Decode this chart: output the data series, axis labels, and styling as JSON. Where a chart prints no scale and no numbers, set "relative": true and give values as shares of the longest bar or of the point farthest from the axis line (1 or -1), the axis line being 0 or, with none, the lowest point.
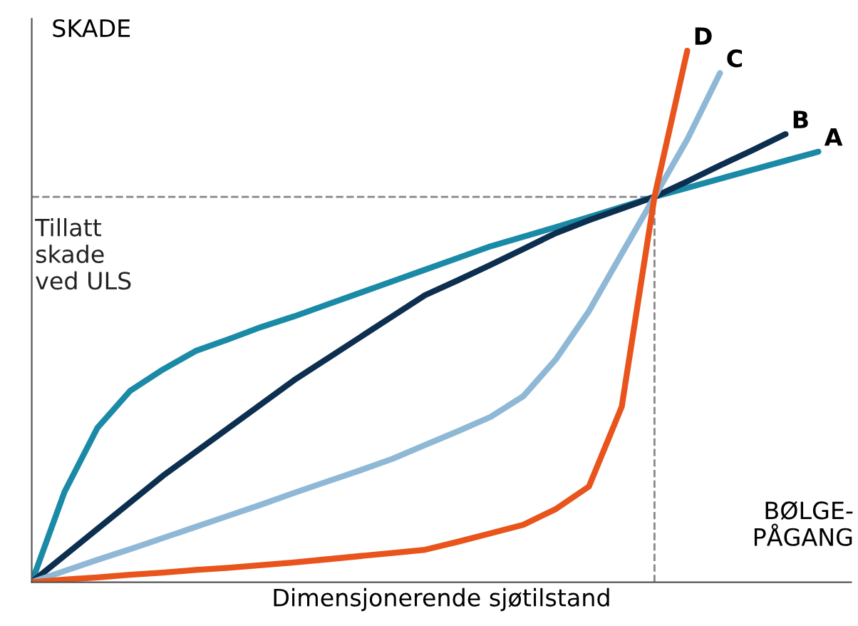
{
  "chart_data": {
    "type": "line",
    "relative": true,
    "ylabel": "SKADE",
    "xlabel": "Dimensjonerende sjøtilstand",
    "annotations": [
      {
        "text": "BØLGE-\nPÅGANG"
      }
    ],
    "categories": [
      null,
      null,
      null,
      null,
      null,
      null,
      null,
      null,
      null,
      null,
      null,
      null,
      null,
      null,
      null,
      null,
      null,
      null,
      null,
      null,
      null,
      null,
      null,
      null,
      null,
      null
    ],
    "ref_lines": [
      {
        "axis": "y",
        "value": 0.725,
        "label": "Tillatt\nskade\nved ULS",
        "color": "#888888",
        "line_style": "dashed"
      }
    ],
    "series": [
      {
        "name": "A",
        "color": "#1a8aa6",
        "values": [
          0,
          0.17,
          0.29,
          0.36,
          0.4,
          0.435,
          0.457,
          0.48,
          0.5,
          0.522,
          0.544,
          0.566,
          0.588,
          0.61,
          0.632,
          0.65,
          0.668,
          0.687,
          0.706,
          0.725,
          0.742,
          0.759,
          0.776,
          0.793,
          0.81,
          null
        ]
      },
      {
        "name": "B",
        "color": "#0d2f4f",
        "values": [
          0,
          0.05,
          0.1,
          0.15,
          0.2,
          0.245,
          0.29,
          0.335,
          0.38,
          0.42,
          0.46,
          0.5,
          0.54,
          0.568,
          0.597,
          0.627,
          0.657,
          0.681,
          0.703,
          0.725,
          0.754,
          0.784,
          0.813,
          0.843,
          null,
          null
        ]
      },
      {
        "name": "C",
        "color": "#8fb8d6",
        "values": [
          0,
          0.021,
          0.042,
          0.062,
          0.083,
          0.104,
          0.125,
          0.146,
          0.168,
          0.189,
          0.21,
          0.232,
          0.258,
          0.284,
          0.311,
          0.35,
          0.42,
          0.51,
          0.618,
          0.725,
          0.833,
          0.958,
          null,
          null,
          null,
          null
        ]
      },
      {
        "name": "D",
        "color": "#e8541c",
        "values": [
          0,
          0.005,
          0.009,
          0.014,
          0.018,
          0.023,
          0.027,
          0.032,
          0.037,
          0.043,
          0.049,
          0.055,
          0.061,
          0.076,
          0.092,
          0.108,
          0.138,
          0.18,
          0.33,
          0.725,
          1.0,
          null,
          null,
          null,
          null,
          null
        ]
      }
    ],
    "legend": false,
    "marker": "none",
    "line_style": "solid",
    "tick_labels": false
  }
}
